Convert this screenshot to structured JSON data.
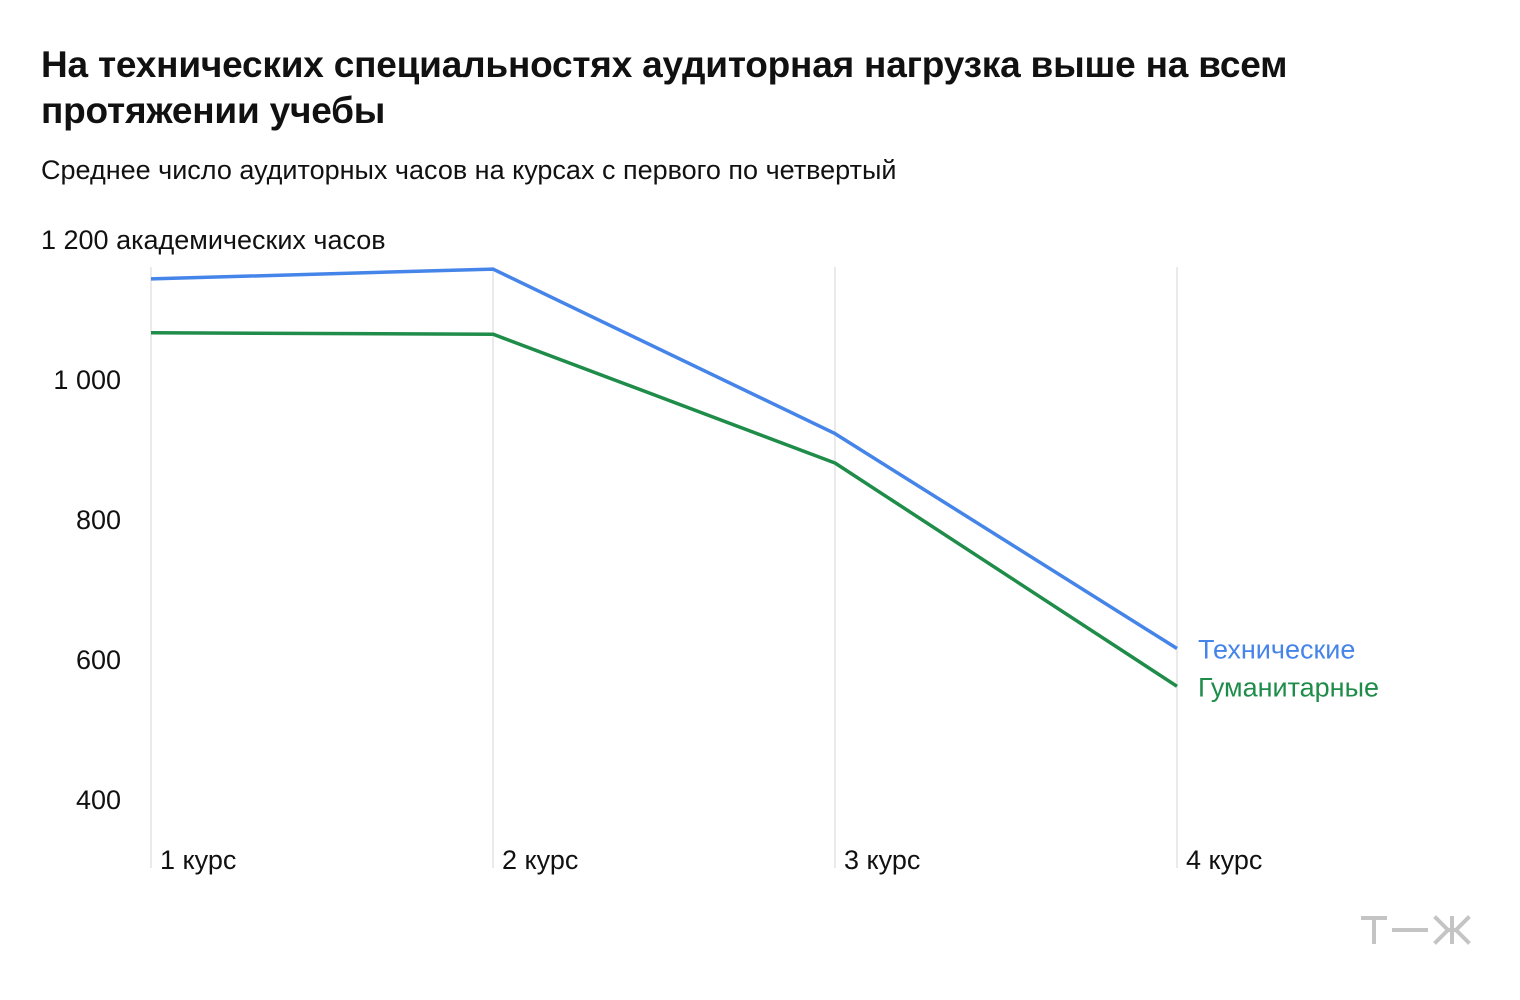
{
  "title": "На технических специальностях аудиторная нагрузка выше на всем протяжении учебы",
  "subtitle": "Среднее число аудиторных часов на курсах с первого по четвертый",
  "logo_text": "т—ж",
  "colors": {
    "technical": "#4584e8",
    "humanities": "#1f8c4a",
    "gridline": "#e4e4e4",
    "text": "#111111",
    "logo": "#c4c4c4"
  },
  "chart_data": {
    "type": "line",
    "categories": [
      "1 курс",
      "2 курс",
      "3 курс",
      "4 курс"
    ],
    "series": [
      {
        "name": "Технические",
        "values": [
          1143,
          1157,
          922,
          615
        ]
      },
      {
        "name": "Гуманитарные",
        "values": [
          1066,
          1064,
          880,
          561
        ]
      }
    ],
    "yticks": [
      400,
      600,
      800,
      1000,
      1200
    ],
    "ytick_labels": [
      "400",
      "600",
      "800",
      "1 000",
      "1 200 академических часов"
    ],
    "ylim": [
      400,
      1200
    ],
    "grid": "vertical",
    "legend": "inline at line ends"
  }
}
